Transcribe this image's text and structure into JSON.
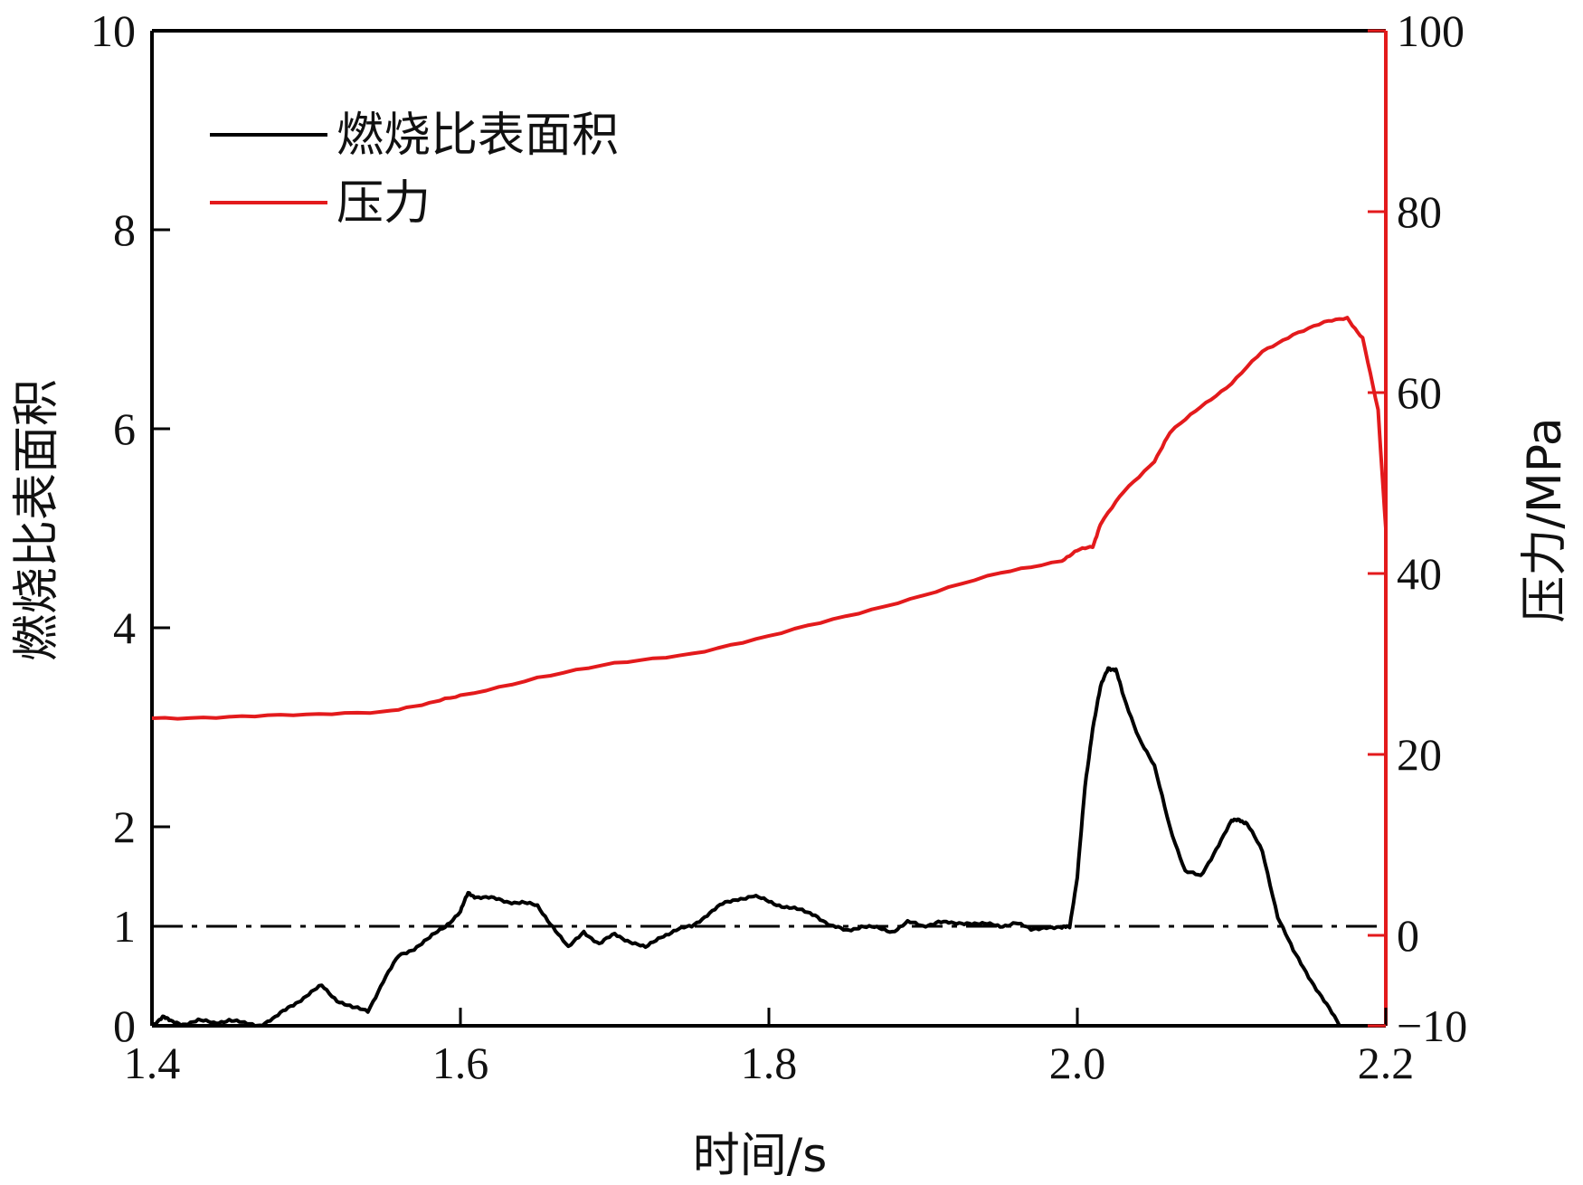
{
  "chart_data": {
    "type": "line",
    "xlabel": "时间/s",
    "ylabel_left": "燃烧比表面积",
    "ylabel_right": "压力/MPa",
    "xlim": [
      1.4,
      2.2
    ],
    "ylim_left": [
      0,
      10
    ],
    "ylim_right": [
      -10,
      100
    ],
    "x_ticks": [
      "1.4",
      "1.6",
      "1.8",
      "2.0",
      "2.2"
    ],
    "x_tick_values": [
      1.4,
      1.6,
      1.8,
      2.0,
      2.2
    ],
    "y_left_ticks": [
      "0",
      "1",
      "2",
      "4",
      "6",
      "8",
      "10"
    ],
    "y_left_tick_values": [
      0,
      1,
      2,
      4,
      6,
      8,
      10
    ],
    "y_right_ticks": [
      "−10",
      "0",
      "20",
      "40",
      "60",
      "80",
      "100"
    ],
    "y_right_tick_values": [
      -10,
      0,
      20,
      40,
      60,
      80,
      100
    ],
    "grid": false,
    "legend_position": "top-left",
    "reference_line": {
      "axis": "left",
      "y": 1,
      "style": "dash-dot",
      "color": "#000000"
    },
    "series": [
      {
        "name": "燃烧比表面积",
        "axis": "left",
        "color": "#000000",
        "x": [
          1.4,
          1.407,
          1.412,
          1.42,
          1.43,
          1.44,
          1.45,
          1.46,
          1.47,
          1.48,
          1.49,
          1.5,
          1.51,
          1.52,
          1.53,
          1.54,
          1.55,
          1.56,
          1.57,
          1.58,
          1.59,
          1.6,
          1.605,
          1.61,
          1.62,
          1.63,
          1.64,
          1.65,
          1.66,
          1.67,
          1.68,
          1.69,
          1.7,
          1.71,
          1.72,
          1.73,
          1.74,
          1.75,
          1.76,
          1.77,
          1.78,
          1.79,
          1.8,
          1.81,
          1.82,
          1.83,
          1.84,
          1.85,
          1.86,
          1.87,
          1.88,
          1.89,
          1.9,
          1.91,
          1.92,
          1.93,
          1.94,
          1.95,
          1.96,
          1.97,
          1.98,
          1.99,
          1.995,
          2.0,
          2.005,
          2.01,
          2.015,
          2.02,
          2.025,
          2.03,
          2.04,
          2.05,
          2.06,
          2.07,
          2.08,
          2.09,
          2.1,
          2.105,
          2.11,
          2.12,
          2.13,
          2.14,
          2.15,
          2.16,
          2.17
        ],
        "values": [
          0.0,
          0.1,
          0.04,
          0.02,
          0.05,
          0.03,
          0.06,
          0.02,
          0.01,
          0.08,
          0.2,
          0.3,
          0.4,
          0.26,
          0.18,
          0.15,
          0.45,
          0.7,
          0.78,
          0.88,
          1.0,
          1.15,
          1.33,
          1.3,
          1.28,
          1.25,
          1.24,
          1.2,
          1.0,
          0.78,
          0.95,
          0.82,
          0.92,
          0.85,
          0.78,
          0.9,
          0.96,
          1.0,
          1.12,
          1.22,
          1.28,
          1.3,
          1.25,
          1.2,
          1.16,
          1.12,
          1.0,
          0.96,
          1.0,
          0.98,
          0.95,
          1.04,
          1.0,
          1.05,
          1.02,
          1.04,
          1.02,
          1.0,
          1.04,
          0.96,
          1.0,
          0.98,
          1.0,
          1.5,
          2.4,
          3.0,
          3.4,
          3.6,
          3.58,
          3.3,
          2.9,
          2.6,
          2.0,
          1.55,
          1.5,
          1.78,
          2.05,
          2.08,
          2.03,
          1.75,
          1.1,
          0.75,
          0.5,
          0.25,
          0.0
        ]
      },
      {
        "name": "压力",
        "axis": "right",
        "color": "#e31a1c",
        "x": [
          1.4,
          1.45,
          1.5,
          1.55,
          1.58,
          1.6,
          1.65,
          1.7,
          1.75,
          1.8,
          1.85,
          1.9,
          1.95,
          1.99,
          2.0,
          2.01,
          2.015,
          2.03,
          2.05,
          2.06,
          2.08,
          2.1,
          2.12,
          2.14,
          2.16,
          2.175,
          2.185,
          2.195,
          2.2
        ],
        "values": [
          24.0,
          24.2,
          24.3,
          24.8,
          25.6,
          26.5,
          28.5,
          30.0,
          31.2,
          33.0,
          35.3,
          37.6,
          40.0,
          41.5,
          42.5,
          43.0,
          45.5,
          49.0,
          52.5,
          55.5,
          58.5,
          61.0,
          64.5,
          66.5,
          67.7,
          68.3,
          66.0,
          58.0,
          45.0
        ]
      }
    ]
  }
}
